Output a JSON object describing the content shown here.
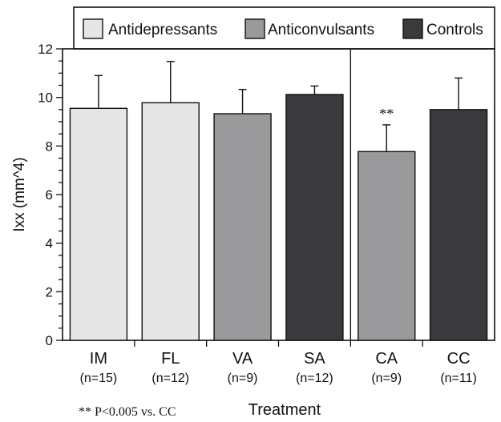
{
  "chart_data": {
    "type": "bar",
    "xlabel": "Treatment",
    "ylabel": "Ixx (mm^4)",
    "ylim": [
      0,
      12
    ],
    "yticks": [
      "0",
      "2",
      "4",
      "6",
      "8",
      "10",
      "12"
    ],
    "legend_position": "top",
    "legend": [
      {
        "label": "Antidepressants",
        "color": "#e6e6e6"
      },
      {
        "label": "Anticonvulsants",
        "color": "#9a9a9c"
      },
      {
        "label": "Controls",
        "color": "#3a3a3c"
      }
    ],
    "categories": [
      "IM",
      "FL",
      "VA",
      "SA",
      "CA",
      "CC"
    ],
    "category_n": [
      "(n=15)",
      "(n=12)",
      "(n=9)",
      "(n=12)",
      "(n=9)",
      "(n=11)"
    ],
    "groups": [
      "Antidepressants",
      "Antidepressants",
      "Anticonvulsants",
      "Controls",
      "Anticonvulsants",
      "Controls"
    ],
    "values": [
      9.55,
      9.78,
      9.33,
      10.12,
      7.77,
      9.5
    ],
    "errors": [
      1.35,
      1.7,
      1.0,
      0.35,
      1.1,
      1.3
    ],
    "annotations": [
      {
        "category": "CA",
        "text": "**"
      }
    ],
    "divider_after_category": "SA"
  },
  "footnote": "** P<0.005 vs. CC"
}
